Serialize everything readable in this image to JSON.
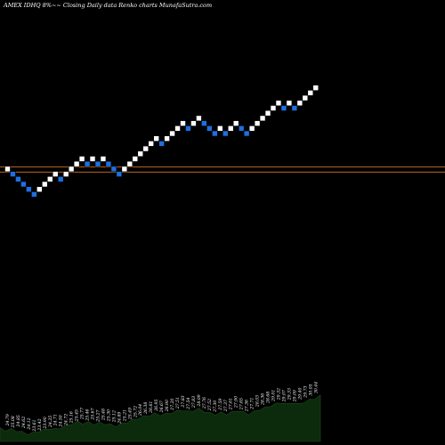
{
  "chart_data": {
    "type": "renko",
    "title": "AMEX  IDHQ 8%~~  Closing Daily data  Renko  charts MunafaSutra.com",
    "up_color": "#ffffff",
    "down_color": "#1e6fe0",
    "reference_line_color": "#b8661e",
    "volume_area_color": "#0c2a0c",
    "bricks": [
      {
        "dir": "up",
        "level": 3
      },
      {
        "dir": "down",
        "level": 2
      },
      {
        "dir": "down",
        "level": 1
      },
      {
        "dir": "down",
        "level": 0
      },
      {
        "dir": "down",
        "level": -1
      },
      {
        "dir": "down",
        "level": -2
      },
      {
        "dir": "up",
        "level": -1
      },
      {
        "dir": "up",
        "level": 0
      },
      {
        "dir": "up",
        "level": 1
      },
      {
        "dir": "up",
        "level": 2
      },
      {
        "dir": "down",
        "level": 1
      },
      {
        "dir": "up",
        "level": 2
      },
      {
        "dir": "up",
        "level": 3
      },
      {
        "dir": "up",
        "level": 4
      },
      {
        "dir": "up",
        "level": 5
      },
      {
        "dir": "down",
        "level": 4
      },
      {
        "dir": "up",
        "level": 5
      },
      {
        "dir": "down",
        "level": 4
      },
      {
        "dir": "up",
        "level": 5
      },
      {
        "dir": "down",
        "level": 4
      },
      {
        "dir": "down",
        "level": 3
      },
      {
        "dir": "down",
        "level": 2
      },
      {
        "dir": "up",
        "level": 3
      },
      {
        "dir": "up",
        "level": 4
      },
      {
        "dir": "up",
        "level": 5
      },
      {
        "dir": "up",
        "level": 6
      },
      {
        "dir": "up",
        "level": 7
      },
      {
        "dir": "up",
        "level": 8
      },
      {
        "dir": "up",
        "level": 9
      },
      {
        "dir": "down",
        "level": 8
      },
      {
        "dir": "up",
        "level": 9
      },
      {
        "dir": "up",
        "level": 10
      },
      {
        "dir": "up",
        "level": 11
      },
      {
        "dir": "up",
        "level": 12
      },
      {
        "dir": "down",
        "level": 11
      },
      {
        "dir": "up",
        "level": 12
      },
      {
        "dir": "up",
        "level": 13
      },
      {
        "dir": "down",
        "level": 12
      },
      {
        "dir": "down",
        "level": 11
      },
      {
        "dir": "down",
        "level": 10
      },
      {
        "dir": "up",
        "level": 11
      },
      {
        "dir": "down",
        "level": 10
      },
      {
        "dir": "up",
        "level": 11
      },
      {
        "dir": "up",
        "level": 12
      },
      {
        "dir": "down",
        "level": 11
      },
      {
        "dir": "down",
        "level": 10
      },
      {
        "dir": "up",
        "level": 11
      },
      {
        "dir": "up",
        "level": 12
      },
      {
        "dir": "up",
        "level": 13
      },
      {
        "dir": "up",
        "level": 14
      },
      {
        "dir": "up",
        "level": 15
      },
      {
        "dir": "up",
        "level": 16
      },
      {
        "dir": "down",
        "level": 15
      },
      {
        "dir": "up",
        "level": 16
      },
      {
        "dir": "down",
        "level": 15
      },
      {
        "dir": "up",
        "level": 16
      },
      {
        "dir": "up",
        "level": 17
      },
      {
        "dir": "up",
        "level": 18
      },
      {
        "dir": "up",
        "level": 19
      }
    ],
    "reference_levels": [
      3.4,
      2.4
    ],
    "price_labels": [
      "24.79",
      "25.08",
      "24.85",
      "24.62",
      "24.12",
      "23.61",
      "23.42",
      "23.90",
      "24.25",
      "24.71",
      "24.50",
      "24.72",
      "25.16",
      "25.45",
      "25.77",
      "25.46",
      "25.67",
      "25.27",
      "25.48",
      "25.30",
      "25.12",
      "24.89",
      "25.21",
      "25.49",
      "25.72",
      "26.04",
      "26.38",
      "26.61",
      "26.95",
      "26.67",
      "26.90",
      "27.20",
      "27.51",
      "27.83",
      "27.54",
      "27.83",
      "28.09",
      "27.76",
      "27.52",
      "27.30",
      "27.59",
      "27.37",
      "27.61",
      "27.90",
      "27.65",
      "27.36",
      "27.71",
      "28.03",
      "28.36",
      "28.68",
      "29.01",
      "29.32",
      "29.07",
      "29.33",
      "29.09",
      "29.40",
      "29.73",
      "30.05",
      "30.44"
    ],
    "volume": [
      0.3,
      0.26,
      0.28,
      0.25,
      0.22,
      0.18,
      0.2,
      0.24,
      0.27,
      0.3,
      0.28,
      0.31,
      0.36,
      0.4,
      0.44,
      0.41,
      0.43,
      0.39,
      0.42,
      0.4,
      0.38,
      0.35,
      0.4,
      0.44,
      0.48,
      0.52,
      0.56,
      0.58,
      0.62,
      0.59,
      0.61,
      0.64,
      0.67,
      0.7,
      0.66,
      0.69,
      0.72,
      0.67,
      0.63,
      0.6,
      0.64,
      0.61,
      0.65,
      0.69,
      0.65,
      0.61,
      0.66,
      0.71,
      0.75,
      0.79,
      0.83,
      0.86,
      0.82,
      0.86,
      0.82,
      0.87,
      0.91,
      0.95,
      1.0
    ]
  }
}
